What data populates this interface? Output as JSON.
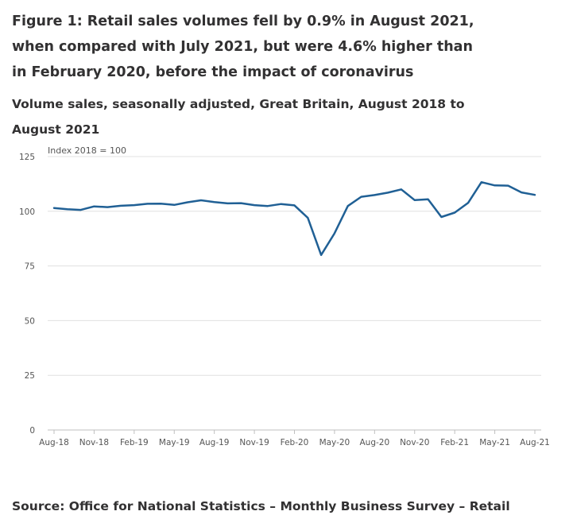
{
  "title": "Figure 1: Retail sales volumes fell by 0.9% in August 2021, when compared with July 2021, but were 4.6% higher than in February 2020, before the impact of coronavirus",
  "subtitle": "Volume sales, seasonally adjusted, Great Britain, August 2018 to August 2021",
  "source": "Source: Office for National Statistics – Monthly Business Survey – Retail",
  "colors": {
    "line": "#206095",
    "grid": "#e0e0e0",
    "axis": "#bfbfbf"
  },
  "chart_data": {
    "type": "line",
    "title": "Volume sales, seasonally adjusted, Great Britain, August 2018 to August 2021",
    "ylabel": "Index 2018 = 100",
    "xlabel": "",
    "ylim": [
      0,
      125
    ],
    "yticks": [
      0,
      25,
      50,
      75,
      100,
      125
    ],
    "grid": true,
    "x": [
      "Aug-18",
      "Sep-18",
      "Oct-18",
      "Nov-18",
      "Dec-18",
      "Jan-19",
      "Feb-19",
      "Mar-19",
      "Apr-19",
      "May-19",
      "Jun-19",
      "Jul-19",
      "Aug-19",
      "Sep-19",
      "Oct-19",
      "Nov-19",
      "Dec-19",
      "Jan-20",
      "Feb-20",
      "Mar-20",
      "Apr-20",
      "May-20",
      "Jun-20",
      "Jul-20",
      "Aug-20",
      "Sep-20",
      "Oct-20",
      "Nov-20",
      "Dec-20",
      "Jan-21",
      "Feb-21",
      "Mar-21",
      "Apr-21",
      "May-21",
      "Jun-21",
      "Jul-21",
      "Aug-21"
    ],
    "xtick_labels": [
      "Aug-18",
      "Nov-18",
      "Feb-19",
      "May-19",
      "Aug-19",
      "Nov-19",
      "Feb-20",
      "May-20",
      "Aug-20",
      "Nov-20",
      "Feb-21",
      "May-21",
      "Aug-21"
    ],
    "series": [
      {
        "name": "Volume sales",
        "values": [
          101.5,
          100.9,
          100.6,
          102.2,
          101.9,
          102.5,
          102.8,
          103.4,
          103.5,
          102.9,
          104.1,
          105.0,
          104.2,
          103.6,
          103.7,
          102.8,
          102.4,
          103.3,
          102.7,
          97.0,
          80.0,
          89.9,
          102.4,
          106.6,
          107.4,
          108.5,
          110.0,
          105.1,
          105.5,
          97.4,
          99.4,
          103.8,
          113.3,
          111.8,
          111.7,
          108.6,
          107.5
        ]
      }
    ]
  }
}
